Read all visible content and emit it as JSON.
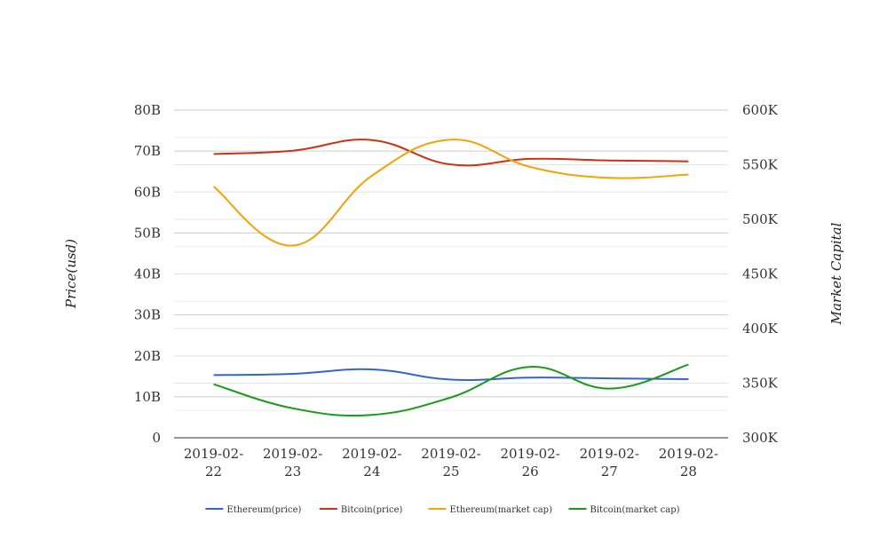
{
  "chart_data": {
    "type": "line",
    "title": "",
    "categories": [
      "2019-02-22",
      "2019-02-23",
      "2019-02-24",
      "2019-02-25",
      "2019-02-26",
      "2019-02-27",
      "2019-02-28"
    ],
    "category_lines": [
      [
        "2019-02-",
        "22"
      ],
      [
        "2019-02-",
        "23"
      ],
      [
        "2019-02-",
        "24"
      ],
      [
        "2019-02-",
        "25"
      ],
      [
        "2019-02-",
        "26"
      ],
      [
        "2019-02-",
        "27"
      ],
      [
        "2019-02-",
        "28"
      ]
    ],
    "ylabel_left": "Price(usd)",
    "ylabel_right": "Market Capital",
    "ylim_left": [
      0,
      80000000000
    ],
    "ylim_right": [
      300000,
      600000
    ],
    "yticks_left": [
      "0",
      "10B",
      "20B",
      "30B",
      "40B",
      "50B",
      "60B",
      "70B",
      "80B"
    ],
    "yticks_right": [
      "300K",
      "350K",
      "400K",
      "450K",
      "500K",
      "550K",
      "600K"
    ],
    "grid": true,
    "legend_position": "bottom",
    "series": [
      {
        "name": "Ethereum(price)",
        "axis": "left",
        "color": "#3366cc",
        "values": [
          15300000000,
          15600000000,
          16700000000,
          14200000000,
          14700000000,
          14500000000,
          14300000000
        ]
      },
      {
        "name": "Bitcoin(price)",
        "axis": "left",
        "color": "#cc3311",
        "values": [
          69300000000,
          70100000000,
          72700000000,
          66700000000,
          68100000000,
          67700000000,
          67500000000
        ]
      },
      {
        "name": "Ethereum(market cap)",
        "axis": "right",
        "color": "#f0a30a",
        "values": [
          530000,
          476000,
          540000,
          573000,
          548000,
          538000,
          541000
        ]
      },
      {
        "name": "Bitcoin(market cap)",
        "axis": "right",
        "color": "#1a9a1a",
        "values": [
          349000,
          327000,
          321000,
          337000,
          365000,
          345000,
          367000
        ]
      }
    ]
  }
}
